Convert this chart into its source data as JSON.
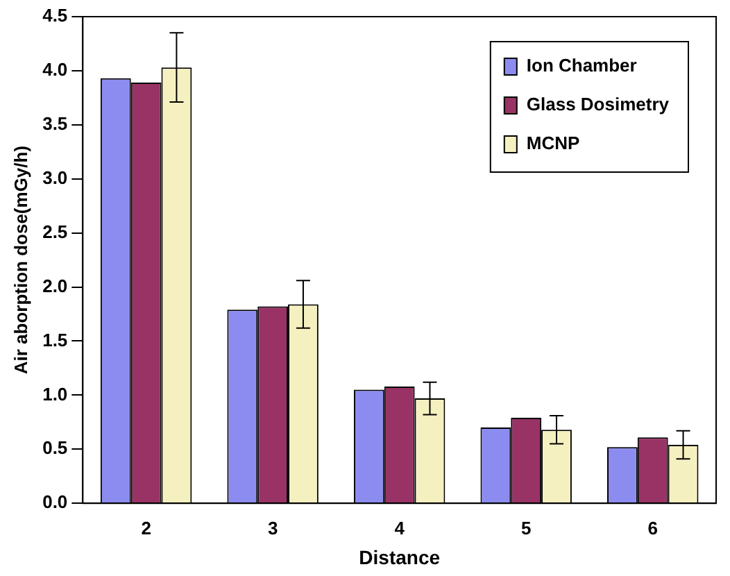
{
  "chart_data": {
    "type": "bar",
    "xlabel": "Distance",
    "ylabel": "Air aborption dose(mGy/h)",
    "categories": [
      "2",
      "3",
      "4",
      "5",
      "6"
    ],
    "series": [
      {
        "name": "Ion Chamber",
        "color": "#8c8cf0",
        "values": [
          3.93,
          1.79,
          1.05,
          0.7,
          0.52
        ]
      },
      {
        "name": "Glass Dosimetry",
        "color": "#993366",
        "values": [
          3.89,
          1.82,
          1.08,
          0.79,
          0.61
        ]
      },
      {
        "name": "MCNP",
        "color": "#f5f0c0",
        "values": [
          4.03,
          1.84,
          0.97,
          0.68,
          0.54
        ],
        "errors": [
          0.32,
          0.22,
          0.15,
          0.13,
          0.13
        ]
      }
    ],
    "ylim": [
      0,
      4.5
    ],
    "yticks": [
      {
        "value": 0,
        "label": "0.0"
      },
      {
        "value": 0.5,
        "label": "0.5"
      },
      {
        "value": 1,
        "label": "1.0"
      },
      {
        "value": 1.5,
        "label": "1.5"
      },
      {
        "value": 2,
        "label": "2.0"
      },
      {
        "value": 2.5,
        "label": "2.5"
      },
      {
        "value": 3,
        "label": "3.0"
      },
      {
        "value": 3.5,
        "label": "3.5"
      },
      {
        "value": 4,
        "label": "4.0"
      },
      {
        "value": 4.5,
        "label": "4.5"
      }
    ],
    "grid": false,
    "legend": "top right"
  }
}
